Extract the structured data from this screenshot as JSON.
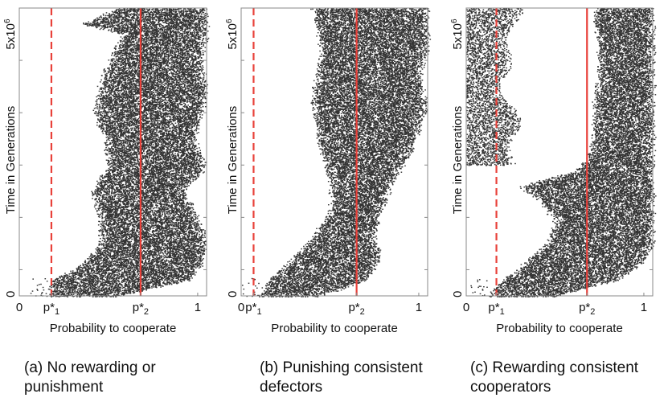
{
  "panels": [
    {
      "caption": "(a) No rewarding or punishment",
      "chart_data": {
        "type": "scatter",
        "xlabel": "Probability to cooperate",
        "ylabel": "Time in Generations",
        "xlim": [
          0,
          1.05
        ],
        "ylim": [
          0,
          5.5
        ],
        "y_unit_label": "x10^6",
        "x_ticks": [
          {
            "value": 0,
            "label": "0"
          },
          {
            "value": 0.18,
            "label": "p*1",
            "base": "p*",
            "sub": "1"
          },
          {
            "value": 0.68,
            "label": "p*2",
            "base": "p*",
            "sub": "2"
          },
          {
            "value": 1,
            "label": "1"
          }
        ],
        "y_ticks": [
          {
            "value": 0,
            "label": "0"
          },
          {
            "value": 5,
            "label": "5x10^6",
            "base": "5x10",
            "sup": "6"
          }
        ],
        "reference_lines": [
          {
            "name": "p*1",
            "x": 0.18,
            "style": "dashed",
            "color": "#e8413a"
          },
          {
            "name": "p*2",
            "x": 0.68,
            "style": "solid",
            "color": "#e8413a"
          }
        ],
        "point_color": "#333333",
        "band": {
          "y": [
            0,
            0.3,
            0.6,
            1.0,
            1.5,
            2.0,
            2.5,
            3.0,
            3.5,
            4.0,
            4.5,
            5.0,
            5.2,
            5.5
          ],
          "left": [
            0.16,
            0.18,
            0.35,
            0.45,
            0.45,
            0.4,
            0.5,
            0.48,
            0.42,
            0.45,
            0.5,
            0.58,
            0.35,
            0.55
          ],
          "right": [
            0.55,
            0.95,
            1.02,
            1.05,
            1.0,
            0.92,
            1.05,
            0.98,
            1.02,
            1.05,
            1.02,
            1.05,
            1.05,
            1.05
          ]
        }
      }
    },
    {
      "caption": "(b) Punishing consistent defectors",
      "chart_data": {
        "type": "scatter",
        "xlabel": "Probability to cooperate",
        "ylabel": "Time in Generations",
        "xlim": [
          0,
          1.05
        ],
        "ylim": [
          0,
          5.5
        ],
        "y_unit_label": "x10^6",
        "x_ticks": [
          {
            "value": 0,
            "label": "0"
          },
          {
            "value": 0.07,
            "label": "p*1",
            "base": "p*",
            "sub": "1"
          },
          {
            "value": 0.65,
            "label": "p*2",
            "base": "p*",
            "sub": "2"
          },
          {
            "value": 1,
            "label": "1"
          }
        ],
        "y_ticks": [
          {
            "value": 0,
            "label": "0"
          },
          {
            "value": 5,
            "label": "5x10^6",
            "base": "5x10",
            "sup": "6"
          }
        ],
        "reference_lines": [
          {
            "name": "p*1",
            "x": 0.07,
            "style": "dashed",
            "color": "#e8413a"
          },
          {
            "name": "p*2",
            "x": 0.65,
            "style": "solid",
            "color": "#e8413a"
          }
        ],
        "point_color": "#333333",
        "band": {
          "y": [
            0,
            0.3,
            0.7,
            1.2,
            1.7,
            2.2,
            2.7,
            3.2,
            3.7,
            4.2,
            4.7,
            5.2,
            5.5
          ],
          "left": [
            0.1,
            0.15,
            0.28,
            0.42,
            0.5,
            0.5,
            0.45,
            0.42,
            0.4,
            0.42,
            0.45,
            0.42,
            0.4
          ],
          "right": [
            0.45,
            0.7,
            0.78,
            0.75,
            0.8,
            0.85,
            0.95,
            1.0,
            1.05,
            1.0,
            1.05,
            1.05,
            1.05
          ]
        }
      }
    },
    {
      "caption": "(c) Rewarding consistent cooperators",
      "chart_data": {
        "type": "scatter",
        "xlabel": "Probability to cooperate",
        "ylabel": "Time in Generations",
        "xlim": [
          0,
          1.05
        ],
        "ylim": [
          0,
          5.5
        ],
        "y_unit_label": "x10^6",
        "x_ticks": [
          {
            "value": 0,
            "label": "0"
          },
          {
            "value": 0.17,
            "label": "p*1",
            "base": "p*",
            "sub": "1"
          },
          {
            "value": 0.68,
            "label": "p*2",
            "base": "p*",
            "sub": "2"
          },
          {
            "value": 1,
            "label": "1"
          }
        ],
        "y_ticks": [
          {
            "value": 0,
            "label": "0"
          },
          {
            "value": 5,
            "label": "5x10^6",
            "base": "5x10",
            "sup": "6"
          }
        ],
        "reference_lines": [
          {
            "name": "p*1",
            "x": 0.17,
            "style": "dashed",
            "color": "#e8413a"
          },
          {
            "name": "p*2",
            "x": 0.68,
            "style": "solid",
            "color": "#e8413a"
          }
        ],
        "point_color": "#333333",
        "band": {
          "y": [
            0,
            0.3,
            0.6,
            1.0,
            1.4,
            1.8,
            2.1,
            2.4,
            2.8,
            3.3,
            3.8,
            4.3,
            4.8,
            5.2,
            5.5
          ],
          "left": [
            0.12,
            0.2,
            0.32,
            0.45,
            0.5,
            0.42,
            0.3,
            0.62,
            0.7,
            0.72,
            0.72,
            0.74,
            0.74,
            0.72,
            0.72
          ],
          "right": [
            0.5,
            0.85,
            0.98,
            1.05,
            1.05,
            1.05,
            1.05,
            1.05,
            1.05,
            1.05,
            1.05,
            1.05,
            1.05,
            1.05,
            1.05
          ]
        },
        "early_cluster": {
          "y_range": [
            2.5,
            5.5
          ],
          "left": 0.0,
          "right_min": 0.18,
          "right_max": 0.32
        }
      }
    }
  ]
}
